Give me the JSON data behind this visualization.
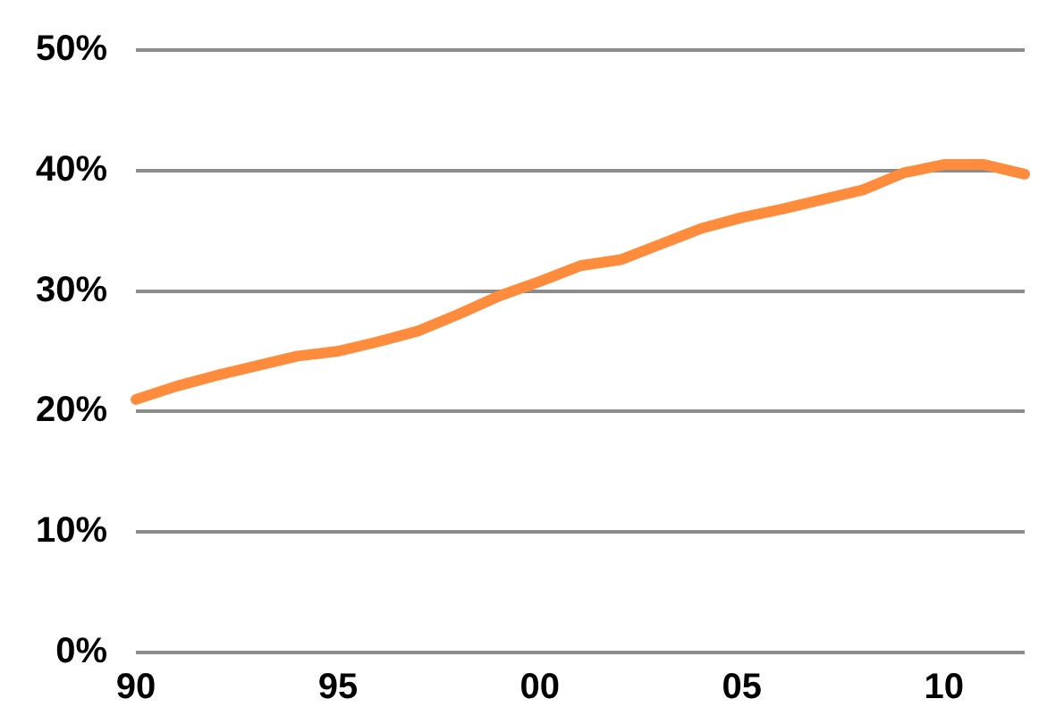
{
  "chart_data": {
    "type": "line",
    "categories": [
      "90",
      null,
      null,
      null,
      null,
      "95",
      null,
      null,
      null,
      null,
      "00",
      null,
      null,
      null,
      null,
      "05",
      null,
      null,
      null,
      null,
      "10",
      null,
      null
    ],
    "series": [
      {
        "color": "#ff8c3c",
        "values": [
          21.0,
          22.1,
          23.0,
          23.8,
          24.6,
          25.0,
          25.8,
          26.7,
          28.1,
          29.6,
          30.8,
          32.1,
          32.6,
          33.9,
          35.2,
          36.1,
          36.8,
          37.6,
          38.4,
          39.8,
          40.5,
          40.5,
          39.7
        ]
      }
    ],
    "ylim": [
      0,
      50
    ],
    "yticks": [
      {
        "value": 0,
        "label": "0%"
      },
      {
        "value": 10,
        "label": "10%"
      },
      {
        "value": 20,
        "label": "20%"
      },
      {
        "value": 30,
        "label": "30%"
      },
      {
        "value": 40,
        "label": "40%"
      },
      {
        "value": 50,
        "label": "50%"
      }
    ],
    "grid": "y",
    "legend": false,
    "marker": "none",
    "line_style": "solid"
  }
}
